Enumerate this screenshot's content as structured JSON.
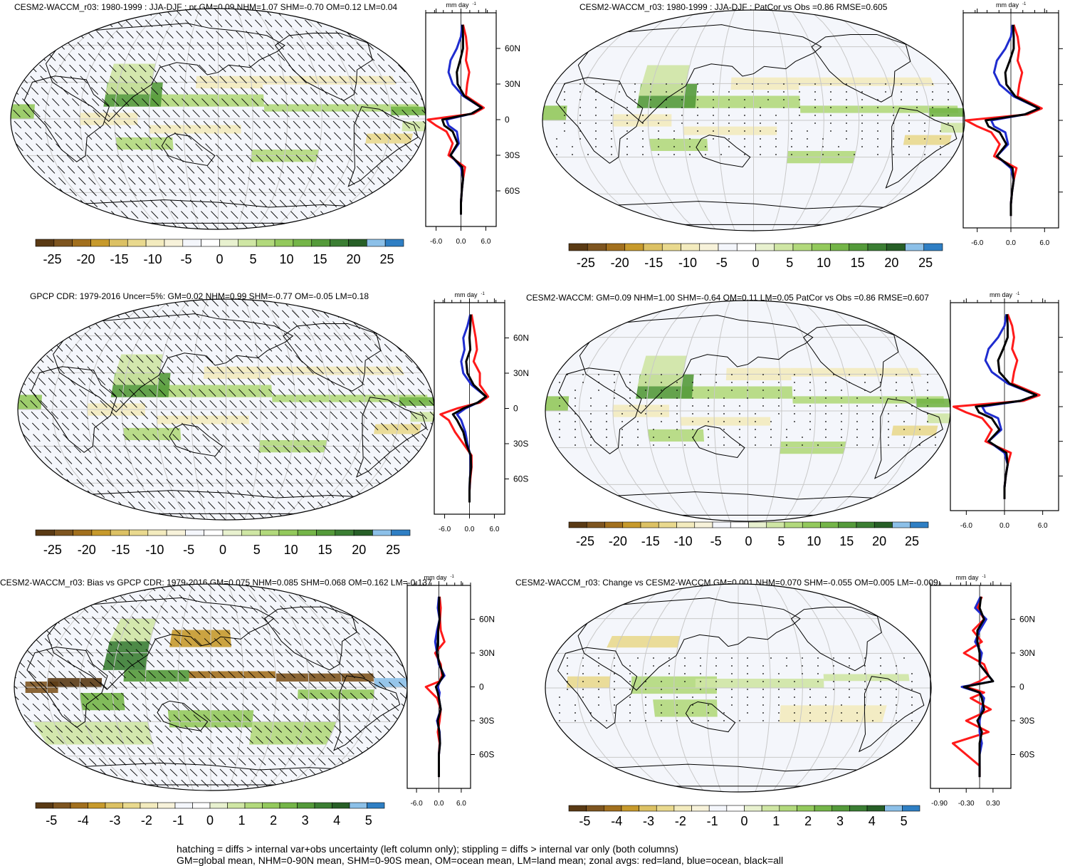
{
  "figure": {
    "footnote_1": "hatching = diffs > internal var+obs uncertainty (left column only); stippling = diffs > internal var only (both columns)",
    "footnote_2": "GM=global mean, NHM=0-90N mean, SHM=0-90S mean, OM=ocean mean, LM=land mean; zonal avgs: red=land, blue=ocean, black=all"
  },
  "colors": {
    "palette": [
      "#5a3a14",
      "#7e5520",
      "#a2701e",
      "#c79a2c",
      "#dcc164",
      "#e9d98e",
      "#f3ebbe",
      "#f7f2da",
      "#f4f6fb",
      "#ffffff",
      "#e8f1cf",
      "#cfe6a4",
      "#b2d97c",
      "#93c95c",
      "#74b548",
      "#549a3a",
      "#3b7e33",
      "#275f27",
      "#8cc0e8",
      "#2f7fc4"
    ],
    "land_zonal": "#ff1a1a",
    "ocean_zonal": "#1f2ccf",
    "all_zonal": "#000000",
    "grid": "#c8c8c8",
    "coast": "#000000"
  },
  "chart_data": [
    {
      "type": "heatmap",
      "title": "CESM2-WACCM_r03: 1980-1999 : JJA-DJF : pr GM=0.09 NHM=1.07 SHM=-0.70 OM=0.12 LM=0.04",
      "projection": "Robinson",
      "overlay": "hatching",
      "colorbar": {
        "labels": [
          "-25",
          "-20",
          "-15",
          "-10",
          "-5",
          "0",
          "5",
          "10",
          "15",
          "20",
          "25"
        ],
        "vmin": -27.5,
        "vmax": 27.5
      },
      "zonal": {
        "units": "mm day-1",
        "lat_ticks": [
          "60N",
          "30N",
          "0",
          "30S",
          "60S"
        ],
        "x_ticks": [
          "-6.0",
          "0.0",
          "6.0"
        ],
        "xlim": [
          -8.5,
          8.5
        ],
        "lat": [
          80,
          70,
          60,
          50,
          40,
          30,
          20,
          10,
          5,
          0,
          -5,
          -10,
          -20,
          -30,
          -40,
          -50,
          -60,
          -70,
          -80
        ],
        "land": [
          0.5,
          1.2,
          1.5,
          1.2,
          2.0,
          1.5,
          1.2,
          5.5,
          3.0,
          -8.0,
          -6.0,
          -3.5,
          -2.0,
          -3.0,
          1.0,
          0.5,
          0.2,
          0.0,
          0.0
        ],
        "ocean": [
          0.3,
          0.0,
          -1.0,
          -2.5,
          -3.0,
          -2.0,
          0.5,
          5.0,
          2.5,
          -3.5,
          -3.0,
          -1.0,
          -0.5,
          -2.5,
          0.0,
          0.5,
          0.2,
          0.0,
          0.0
        ],
        "all": [
          0.4,
          0.5,
          0.5,
          -0.2,
          -1.0,
          -0.8,
          0.8,
          5.0,
          2.5,
          -4.5,
          -4.0,
          -2.0,
          -0.8,
          -2.5,
          0.3,
          0.5,
          0.2,
          0.0,
          0.0
        ]
      }
    },
    {
      "type": "heatmap",
      "title": "CESM2-WACCM_r03: 1980-1999 : JJA-DJF : PatCor vs Obs =0.86 RMSE=0.605",
      "projection": "Robinson",
      "overlay": "stippling",
      "colorbar": {
        "labels": [
          "-25",
          "-20",
          "-15",
          "-10",
          "-5",
          "0",
          "5",
          "10",
          "15",
          "20",
          "25"
        ],
        "vmin": -27.5,
        "vmax": 27.5
      },
      "zonal": {
        "units": "mm day-1",
        "lat_ticks": [
          "60N",
          "30N",
          "0",
          "30S",
          "60S"
        ],
        "x_ticks": [
          "-6.0",
          "0.0",
          "6.0"
        ],
        "xlim": [
          -8.5,
          8.5
        ],
        "lat": [
          80,
          70,
          60,
          50,
          40,
          30,
          20,
          10,
          5,
          0,
          -5,
          -10,
          -20,
          -30,
          -40,
          -50,
          -60,
          -70,
          -80
        ],
        "land": [
          0.5,
          1.2,
          1.5,
          1.2,
          2.0,
          1.5,
          1.2,
          5.5,
          3.0,
          -8.0,
          -6.0,
          -3.5,
          -2.0,
          -3.0,
          1.0,
          0.5,
          0.2,
          0.0,
          0.0
        ],
        "ocean": [
          0.3,
          0.0,
          -1.0,
          -2.5,
          -3.0,
          -2.0,
          0.5,
          5.0,
          2.5,
          -3.5,
          -3.0,
          -1.0,
          -0.5,
          -2.5,
          0.0,
          0.5,
          0.2,
          0.0,
          0.0
        ],
        "all": [
          0.4,
          0.5,
          0.5,
          -0.2,
          -1.0,
          -0.8,
          0.8,
          5.0,
          2.5,
          -4.5,
          -4.0,
          -2.0,
          -0.8,
          -2.5,
          0.3,
          0.5,
          0.2,
          0.0,
          0.0
        ]
      }
    },
    {
      "type": "heatmap",
      "title": "GPCP CDR: 1979-2016 Uncer=5%: GM=0.02 NHM=0.99 SHM=-0.77 OM=-0.05 LM=0.18",
      "projection": "Robinson",
      "overlay": "hatching",
      "colorbar": {
        "labels": [
          "-25",
          "-20",
          "-15",
          "-10",
          "-5",
          "0",
          "5",
          "10",
          "15",
          "20",
          "25"
        ],
        "vmin": -27.5,
        "vmax": 27.5
      },
      "zonal": {
        "units": "mm day-1",
        "lat_ticks": [
          "60N",
          "30N",
          "0",
          "30S",
          "60S"
        ],
        "x_ticks": [
          "-6.0",
          "0.0",
          "6.0"
        ],
        "xlim": [
          -8.5,
          8.5
        ],
        "lat": [
          80,
          70,
          60,
          50,
          40,
          30,
          20,
          10,
          5,
          0,
          -5,
          -10,
          -20,
          -30,
          -40,
          -50,
          -60,
          -70,
          -80
        ],
        "land": [
          0.5,
          1.0,
          1.5,
          1.8,
          1.0,
          2.5,
          2.5,
          4.5,
          2.5,
          -3.0,
          -7.0,
          -5.0,
          -3.5,
          -1.5,
          0.5,
          0.5,
          0.2,
          0.0,
          0.0
        ],
        "ocean": [
          0.2,
          -0.5,
          -1.5,
          -1.2,
          -2.0,
          -1.5,
          0.5,
          4.0,
          2.0,
          -1.0,
          -3.0,
          -2.0,
          -1.0,
          -0.5,
          0.2,
          0.3,
          0.1,
          0.0,
          0.0
        ],
        "all": [
          0.3,
          0.2,
          0.0,
          0.2,
          -0.8,
          -0.5,
          1.0,
          4.0,
          2.0,
          -1.5,
          -4.0,
          -3.0,
          -1.5,
          -0.8,
          0.3,
          0.4,
          0.1,
          0.0,
          0.0
        ]
      }
    },
    {
      "type": "heatmap",
      "title": "CESM2-WACCM: GM=0.09 NHM=1.00 SHM=-0.64 OM=0.11 LM=0.05 PatCor vs Obs =0.86 RMSE=0.607",
      "projection": "Robinson",
      "overlay": "stippling",
      "colorbar": {
        "labels": [
          "-25",
          "-20",
          "-15",
          "-10",
          "-5",
          "0",
          "5",
          "10",
          "15",
          "20",
          "25"
        ],
        "vmin": -27.5,
        "vmax": 27.5
      },
      "zonal": {
        "units": "mm day-1",
        "lat_ticks": [
          "60N",
          "30N",
          "0",
          "30S",
          "60S"
        ],
        "x_ticks": [
          "-6.0",
          "0.0",
          "6.0"
        ],
        "xlim": [
          -8.5,
          8.5
        ],
        "lat": [
          80,
          70,
          60,
          50,
          40,
          30,
          20,
          10,
          5,
          0,
          -5,
          -10,
          -20,
          -30,
          -40,
          -50,
          -60,
          -70,
          -80
        ],
        "land": [
          0.5,
          1.2,
          1.5,
          1.2,
          2.0,
          1.5,
          1.2,
          5.5,
          3.0,
          -8.0,
          -6.0,
          -3.5,
          -2.0,
          -3.0,
          1.0,
          0.5,
          0.2,
          0.0,
          0.0
        ],
        "ocean": [
          0.3,
          0.0,
          -1.0,
          -2.5,
          -3.0,
          -2.0,
          0.5,
          5.0,
          2.5,
          -3.5,
          -3.0,
          -1.0,
          -0.5,
          -2.5,
          0.0,
          0.5,
          0.2,
          0.0,
          0.0
        ],
        "all": [
          0.4,
          0.5,
          0.5,
          -0.2,
          -1.0,
          -0.8,
          0.8,
          5.0,
          2.5,
          -4.5,
          -4.0,
          -2.0,
          -0.8,
          -2.5,
          0.3,
          0.5,
          0.2,
          0.0,
          0.0
        ]
      }
    },
    {
      "type": "heatmap",
      "title": "CESM2-WACCM_r03: Bias vs GPCP CDR: 1979-2016 GM=0.075 NHM=0.085 SHM=0.068 OM=0.162 LM=-0.137",
      "projection": "Robinson",
      "overlay": "hatching",
      "colorbar": {
        "labels": [
          "-5",
          "-4",
          "-3",
          "-2",
          "-1",
          "0",
          "1",
          "2",
          "3",
          "4",
          "5"
        ],
        "vmin": -5.5,
        "vmax": 5.5
      },
      "zonal": {
        "units": "mm day-1",
        "lat_ticks": [
          "60N",
          "30N",
          "0",
          "30S",
          "60S"
        ],
        "x_ticks": [
          "-6.0",
          "0.0",
          "6.0"
        ],
        "xlim": [
          -8.5,
          8.5
        ],
        "lat": [
          80,
          70,
          60,
          50,
          40,
          30,
          20,
          10,
          5,
          0,
          -5,
          -10,
          -20,
          -30,
          -40,
          -50,
          -60,
          -70,
          -80
        ],
        "land": [
          0.2,
          0.5,
          0.3,
          0.5,
          1.5,
          -1.0,
          0.5,
          0.8,
          0.2,
          -3.5,
          -2.0,
          -0.5,
          0.5,
          0.2,
          -0.3,
          0.2,
          0.0,
          0.0,
          0.0
        ],
        "ocean": [
          0.0,
          -0.3,
          0.2,
          -0.5,
          -1.0,
          -0.5,
          0.0,
          1.5,
          0.3,
          -0.3,
          0.2,
          0.0,
          0.5,
          -0.5,
          0.2,
          0.3,
          0.0,
          0.0,
          0.0
        ],
        "all": [
          0.1,
          0.0,
          0.2,
          -0.2,
          -0.3,
          -0.5,
          0.2,
          1.2,
          0.3,
          -0.8,
          -0.3,
          0.0,
          0.5,
          -0.3,
          0.1,
          0.3,
          0.0,
          0.0,
          0.0
        ]
      }
    },
    {
      "type": "heatmap",
      "title": "CESM2-WACCM_r03: Change vs CESM2-WACCM GM=0.001 NHM=0.070 SHM=-0.055 OM=0.005 LM=-0.009",
      "projection": "Robinson",
      "overlay": "stippling",
      "colorbar": {
        "labels": [
          "-5",
          "-4",
          "-3",
          "-2",
          "-1",
          "0",
          "1",
          "2",
          "3",
          "4",
          "5"
        ],
        "vmin": -5.5,
        "vmax": 5.5
      },
      "zonal": {
        "units": "mm day-1",
        "lat_ticks": [
          "60N",
          "30N",
          "0",
          "30S",
          "60S"
        ],
        "x_ticks": [
          "-0.90",
          "-0.30",
          "0.30"
        ],
        "xlim": [
          -1.1,
          0.7
        ],
        "lat": [
          80,
          70,
          60,
          50,
          40,
          30,
          20,
          10,
          5,
          0,
          -5,
          -10,
          -20,
          -30,
          -40,
          -50,
          -60,
          -70,
          -80
        ],
        "land": [
          0.05,
          -0.05,
          0.1,
          -0.15,
          0.05,
          -0.35,
          0.1,
          0.2,
          0.0,
          -0.3,
          0.1,
          -0.2,
          0.25,
          -0.3,
          0.2,
          -0.6,
          -0.3,
          0.0,
          0.0
        ],
        "ocean": [
          0.02,
          -0.1,
          0.15,
          0.0,
          -0.1,
          0.05,
          0.0,
          0.2,
          0.3,
          -0.4,
          0.0,
          0.1,
          0.05,
          0.0,
          0.0,
          0.05,
          0.0,
          0.0,
          0.0
        ],
        "all": [
          0.03,
          0.0,
          0.1,
          -0.05,
          -0.05,
          0.0,
          0.0,
          0.2,
          0.3,
          -0.35,
          0.0,
          0.05,
          0.1,
          -0.05,
          0.05,
          0.0,
          0.0,
          0.0,
          0.0
        ]
      }
    }
  ]
}
